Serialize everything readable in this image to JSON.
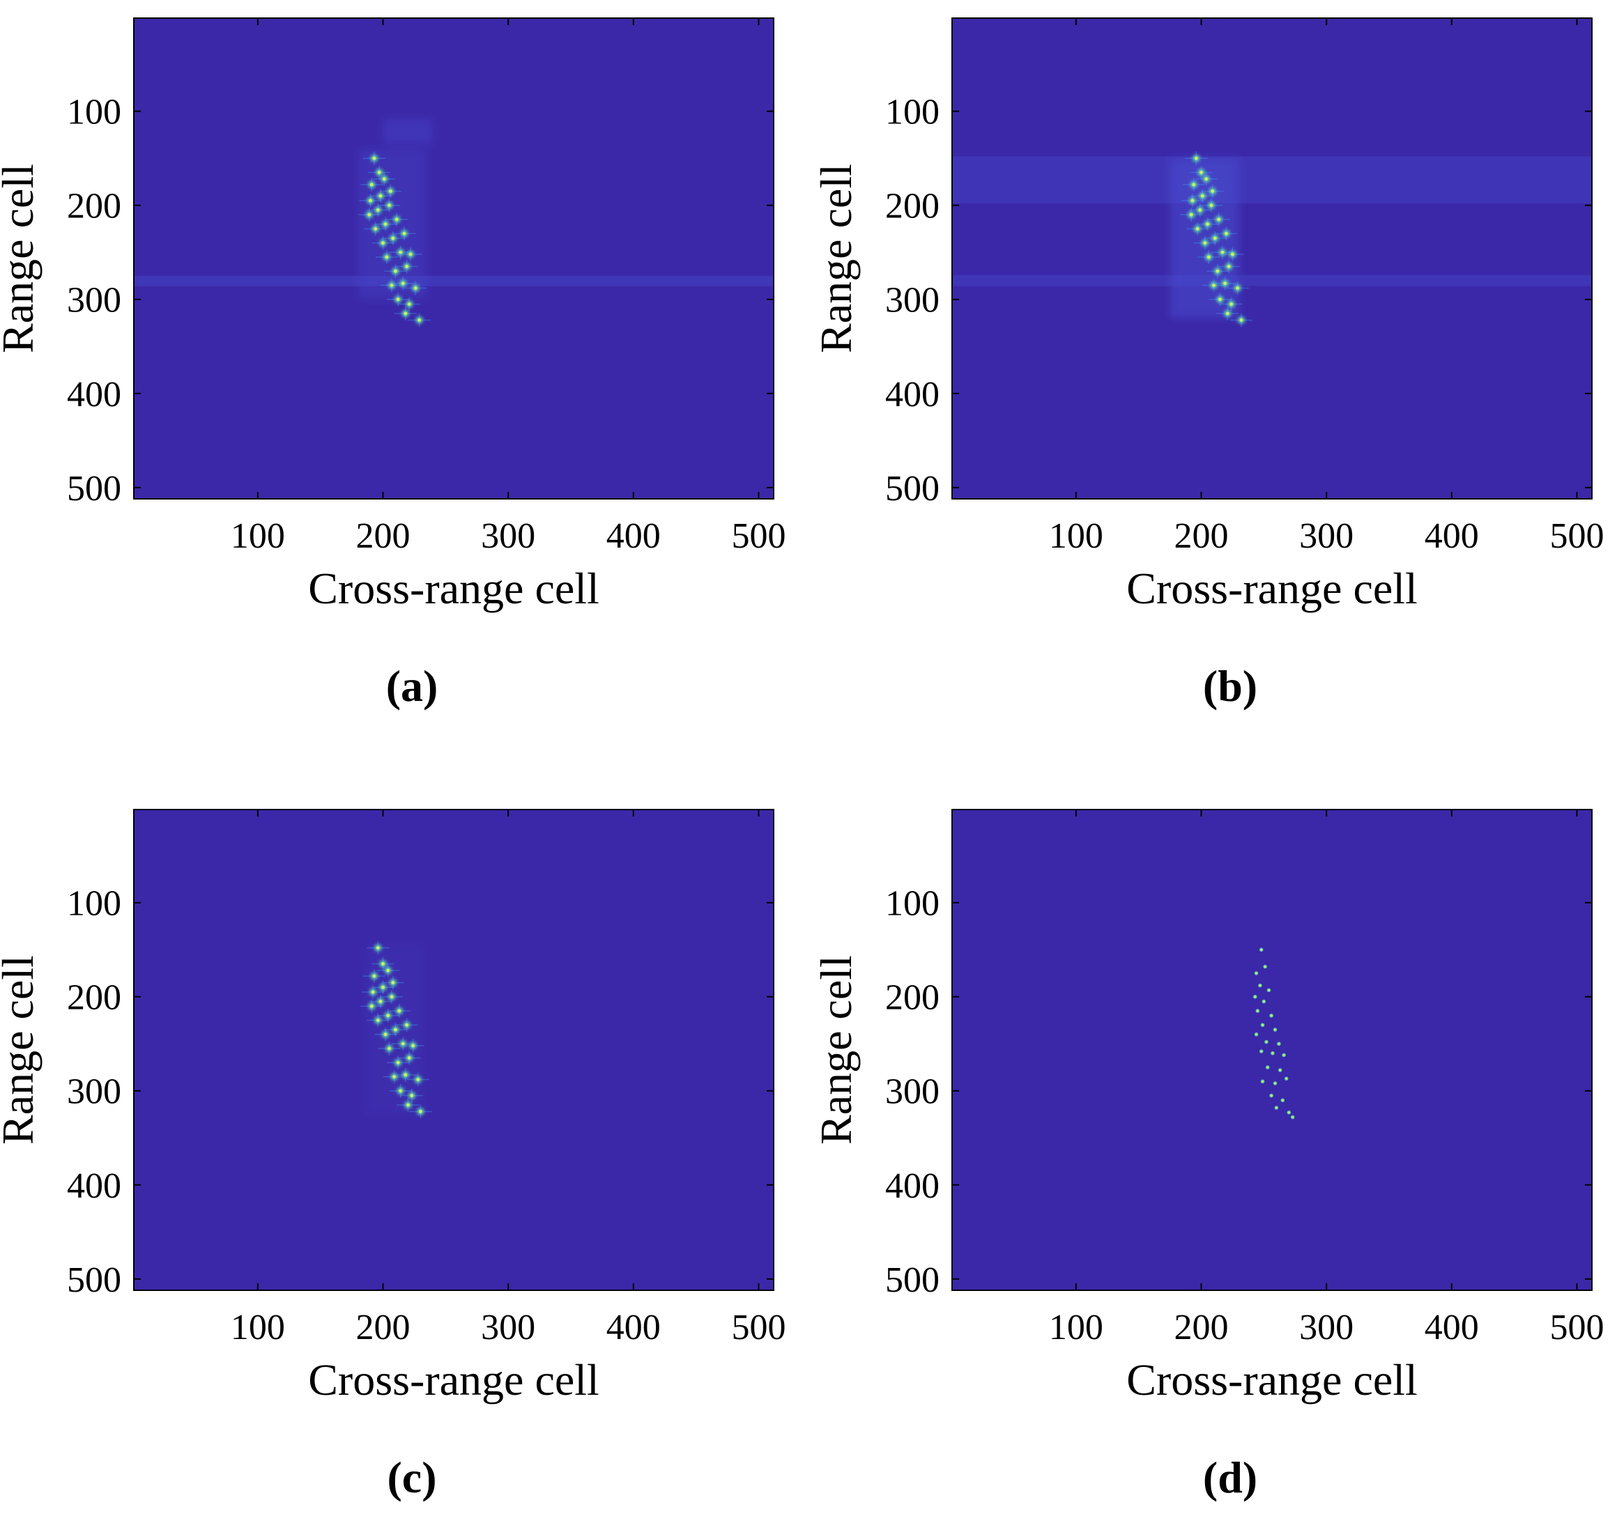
{
  "colors": {
    "background": "#3b28a8",
    "weak": "#4b52d6",
    "mid": "#3f8ff0",
    "strong": "#5ee0b0",
    "peak": "#ccf25a",
    "axis": "#000000"
  },
  "chart_data": [
    {
      "type": "heatmap",
      "panel": "(a)",
      "xlabel": "Cross-range cell",
      "ylabel": "Range cell",
      "xlim": [
        1,
        512
      ],
      "ylim": [
        1,
        512
      ],
      "y_reversed": true,
      "xticks": [
        100,
        200,
        300,
        400,
        500
      ],
      "yticks": [
        100,
        200,
        300,
        400,
        500
      ],
      "points": [
        [
          193,
          150
        ],
        [
          197,
          165
        ],
        [
          191,
          178
        ],
        [
          201,
          172
        ],
        [
          190,
          195
        ],
        [
          198,
          190
        ],
        [
          206,
          185
        ],
        [
          189,
          210
        ],
        [
          196,
          205
        ],
        [
          205,
          200
        ],
        [
          194,
          225
        ],
        [
          202,
          220
        ],
        [
          211,
          215
        ],
        [
          200,
          240
        ],
        [
          208,
          235
        ],
        [
          217,
          230
        ],
        [
          203,
          255
        ],
        [
          214,
          250
        ],
        [
          222,
          252
        ],
        [
          210,
          270
        ],
        [
          219,
          265
        ],
        [
          207,
          285
        ],
        [
          216,
          283
        ],
        [
          226,
          288
        ],
        [
          212,
          300
        ],
        [
          221,
          305
        ],
        [
          218,
          315
        ],
        [
          229,
          322
        ]
      ],
      "stripes": [
        {
          "y": [
            275,
            286
          ],
          "x": [
            1,
            512
          ],
          "level": 0.35
        }
      ],
      "patches": [
        {
          "x": [
            200,
            240
          ],
          "y": [
            108,
            135
          ],
          "level": 0.3
        },
        {
          "x": [
            180,
            235
          ],
          "y": [
            140,
            300
          ],
          "level": 0.25
        }
      ]
    },
    {
      "type": "heatmap",
      "panel": "(b)",
      "xlabel": "Cross-range cell",
      "ylabel": "Range cell",
      "xlim": [
        1,
        512
      ],
      "ylim": [
        1,
        512
      ],
      "y_reversed": true,
      "xticks": [
        100,
        200,
        300,
        400,
        500
      ],
      "yticks": [
        100,
        200,
        300,
        400,
        500
      ],
      "points": [
        [
          196,
          150
        ],
        [
          200,
          165
        ],
        [
          194,
          178
        ],
        [
          204,
          172
        ],
        [
          193,
          195
        ],
        [
          201,
          190
        ],
        [
          209,
          185
        ],
        [
          192,
          210
        ],
        [
          199,
          205
        ],
        [
          208,
          200
        ],
        [
          197,
          225
        ],
        [
          205,
          220
        ],
        [
          214,
          215
        ],
        [
          203,
          240
        ],
        [
          211,
          235
        ],
        [
          220,
          230
        ],
        [
          206,
          255
        ],
        [
          217,
          250
        ],
        [
          225,
          252
        ],
        [
          213,
          270
        ],
        [
          222,
          265
        ],
        [
          210,
          285
        ],
        [
          219,
          283
        ],
        [
          229,
          288
        ],
        [
          215,
          300
        ],
        [
          224,
          305
        ],
        [
          221,
          315
        ],
        [
          232,
          322
        ]
      ],
      "stripes": [
        {
          "y": [
            148,
            198
          ],
          "x": [
            1,
            512
          ],
          "level": 0.3
        },
        {
          "y": [
            274,
            286
          ],
          "x": [
            1,
            512
          ],
          "level": 0.32
        }
      ],
      "patches": [
        {
          "x": [
            175,
            230
          ],
          "y": [
            150,
            320
          ],
          "level": 0.45
        }
      ]
    },
    {
      "type": "heatmap",
      "panel": "(c)",
      "xlabel": "Cross-range cell",
      "ylabel": "Range cell",
      "xlim": [
        1,
        512
      ],
      "ylim": [
        1,
        512
      ],
      "y_reversed": true,
      "xticks": [
        100,
        200,
        300,
        400,
        500
      ],
      "yticks": [
        100,
        200,
        300,
        400,
        500
      ],
      "points": [
        [
          196,
          148
        ],
        [
          200,
          165
        ],
        [
          193,
          178
        ],
        [
          204,
          172
        ],
        [
          192,
          195
        ],
        [
          200,
          190
        ],
        [
          208,
          185
        ],
        [
          191,
          210
        ],
        [
          198,
          205
        ],
        [
          207,
          200
        ],
        [
          196,
          225
        ],
        [
          204,
          220
        ],
        [
          213,
          215
        ],
        [
          202,
          240
        ],
        [
          210,
          235
        ],
        [
          219,
          230
        ],
        [
          205,
          255
        ],
        [
          216,
          250
        ],
        [
          224,
          252
        ],
        [
          212,
          270
        ],
        [
          221,
          265
        ],
        [
          209,
          285
        ],
        [
          218,
          283
        ],
        [
          228,
          288
        ],
        [
          214,
          300
        ],
        [
          223,
          305
        ],
        [
          220,
          315
        ],
        [
          230,
          322
        ]
      ],
      "stripes": [],
      "patches": [
        {
          "x": [
            185,
            232
          ],
          "y": [
            145,
            325
          ],
          "level": 0.12
        }
      ]
    },
    {
      "type": "heatmap",
      "panel": "(d)",
      "xlabel": "Cross-range cell",
      "ylabel": "Range cell",
      "xlim": [
        1,
        512
      ],
      "ylim": [
        1,
        512
      ],
      "y_reversed": true,
      "xticks": [
        100,
        200,
        300,
        400,
        500
      ],
      "yticks": [
        100,
        200,
        300,
        400,
        500
      ],
      "points": [
        [
          248,
          150
        ],
        [
          251,
          168
        ],
        [
          244,
          175
        ],
        [
          247,
          188
        ],
        [
          254,
          193
        ],
        [
          243,
          200
        ],
        [
          250,
          205
        ],
        [
          245,
          215
        ],
        [
          256,
          220
        ],
        [
          249,
          230
        ],
        [
          259,
          235
        ],
        [
          244,
          240
        ],
        [
          252,
          248
        ],
        [
          262,
          250
        ],
        [
          248,
          258
        ],
        [
          257,
          260
        ],
        [
          266,
          262
        ],
        [
          253,
          275
        ],
        [
          263,
          278
        ],
        [
          249,
          290
        ],
        [
          259,
          292
        ],
        [
          268,
          287
        ],
        [
          256,
          305
        ],
        [
          265,
          310
        ],
        [
          260,
          318
        ],
        [
          270,
          323
        ],
        [
          273,
          328
        ]
      ],
      "stripes": [],
      "patches": []
    }
  ]
}
